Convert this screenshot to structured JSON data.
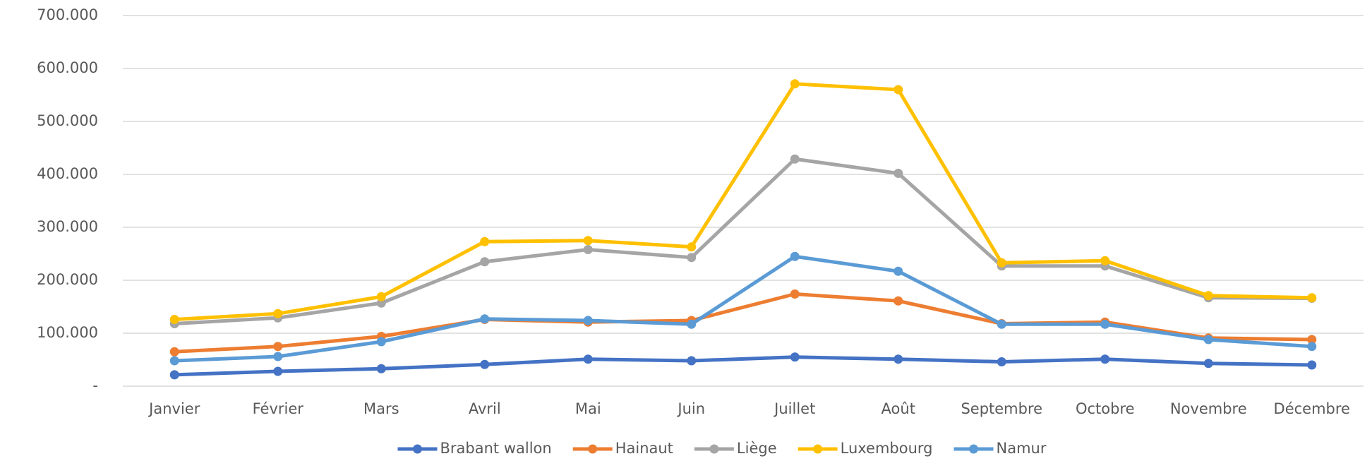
{
  "chart_data": {
    "type": "line",
    "categories": [
      "Janvier",
      "Février",
      "Mars",
      "Avril",
      "Mai",
      "Juin",
      "Juillet",
      "Août",
      "Septembre",
      "Octobre",
      "Novembre",
      "Décembre"
    ],
    "series": [
      {
        "name": "Brabant wallon",
        "color": "#4472c4",
        "values": [
          21500,
          28000,
          33000,
          41000,
          51000,
          48000,
          55000,
          51000,
          46000,
          51000,
          43000,
          40000
        ]
      },
      {
        "name": "Hainaut",
        "color": "#ed7d31",
        "values": [
          65000,
          75000,
          94000,
          126000,
          121000,
          124000,
          174000,
          161000,
          118000,
          121000,
          91000,
          88000
        ]
      },
      {
        "name": "Liège",
        "color": "#a5a5a5",
        "values": [
          118000,
          129000,
          157000,
          235000,
          258000,
          243000,
          429000,
          402000,
          227000,
          227000,
          167000,
          166000
        ]
      },
      {
        "name": "Luxembourg",
        "color": "#ffc000",
        "values": [
          126000,
          137000,
          169000,
          273000,
          275000,
          263000,
          571000,
          560000,
          233000,
          237000,
          171000,
          167000
        ]
      },
      {
        "name": "Namur",
        "color": "#5b9bd5",
        "values": [
          48000,
          56000,
          84000,
          127000,
          124000,
          117000,
          245000,
          217000,
          117000,
          117000,
          88000,
          75000
        ]
      }
    ],
    "ylim": [
      0,
      700000
    ],
    "yticks": [
      {
        "value": 0,
        "label": "-"
      },
      {
        "value": 100000,
        "label": "100.000"
      },
      {
        "value": 200000,
        "label": "200.000"
      },
      {
        "value": 300000,
        "label": "300.000"
      },
      {
        "value": 400000,
        "label": "400.000"
      },
      {
        "value": 500000,
        "label": "500.000"
      },
      {
        "value": 600000,
        "label": "600.000"
      },
      {
        "value": 700000,
        "label": "700.000"
      }
    ],
    "grid": true,
    "legend": "bottom"
  }
}
